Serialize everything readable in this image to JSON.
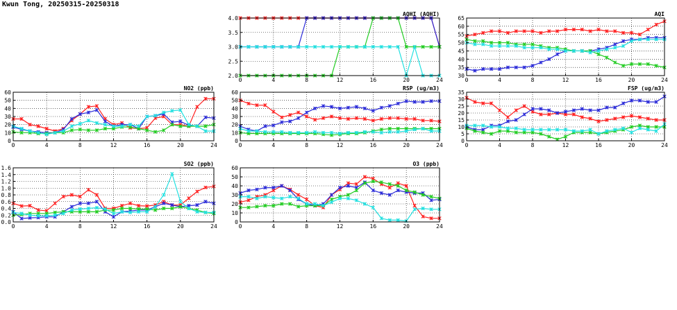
{
  "title": "Kwun Tong, 20250315-20250318",
  "colors": {
    "red": "#ff2020",
    "blue": "#2a2ad8",
    "green": "#22cc22",
    "cyan": "#22e0e0",
    "grid": "#000000"
  },
  "chart_data": [
    {
      "id": "aqhi",
      "type": "line",
      "title": "AQHI (AQHI)",
      "xlim": [
        0,
        24
      ],
      "xticks": [
        0,
        4,
        8,
        12,
        16,
        20,
        24
      ],
      "ylim": [
        2,
        4
      ],
      "yticks": [
        2.0,
        2.5,
        3.0,
        3.5,
        4.0
      ],
      "ytick_labels": [
        "2.0",
        "2.5",
        "3.0",
        "3.5",
        "4.0"
      ],
      "grid": true,
      "series": [
        {
          "color": "red",
          "values": [
            4,
            4,
            4,
            4,
            4,
            4,
            4,
            4,
            4,
            4,
            4,
            4,
            4,
            4,
            4,
            4,
            4,
            4,
            4,
            4,
            4,
            4,
            4,
            4,
            3
          ]
        },
        {
          "color": "blue",
          "values": [
            3,
            3,
            3,
            3,
            3,
            3,
            3,
            3,
            4,
            4,
            4,
            4,
            4,
            4,
            4,
            4,
            4,
            4,
            4,
            4,
            4,
            4,
            4,
            4,
            3
          ]
        },
        {
          "color": "green",
          "values": [
            2,
            2,
            2,
            2,
            2,
            2,
            2,
            2,
            2,
            2,
            2,
            2,
            3,
            3,
            3,
            3,
            4,
            4,
            4,
            4,
            3,
            3,
            3,
            3,
            3
          ]
        },
        {
          "color": "cyan",
          "values": [
            3,
            3,
            3,
            3,
            3,
            3,
            3,
            3,
            3,
            3,
            3,
            3,
            3,
            3,
            3,
            3,
            3,
            3,
            3,
            3,
            2,
            3,
            2,
            2,
            2
          ]
        }
      ]
    },
    {
      "id": "aqi",
      "type": "line",
      "title": "AQI",
      "xlim": [
        0,
        24
      ],
      "xticks": [
        0,
        4,
        8,
        12,
        16,
        20,
        24
      ],
      "ylim": [
        30,
        65
      ],
      "yticks": [
        30,
        35,
        40,
        45,
        50,
        55,
        60,
        65
      ],
      "ytick_labels": [
        "30",
        "35",
        "40",
        "45",
        "50",
        "55",
        "60",
        "65"
      ],
      "grid": true,
      "series": [
        {
          "color": "red",
          "values": [
            54,
            55,
            56,
            57,
            57,
            56,
            57,
            57,
            57,
            56,
            57,
            57,
            58,
            58,
            58,
            57,
            58,
            57,
            57,
            56,
            56,
            55,
            58,
            61,
            63
          ]
        },
        {
          "color": "blue",
          "values": [
            34,
            33,
            34,
            34,
            34,
            35,
            35,
            35,
            36,
            38,
            40,
            43,
            45,
            45,
            45,
            45,
            46,
            47,
            49,
            51,
            52,
            52,
            53,
            53,
            53
          ]
        },
        {
          "color": "green",
          "values": [
            52,
            51,
            51,
            50,
            50,
            50,
            49,
            49,
            49,
            48,
            47,
            47,
            46,
            45,
            45,
            45,
            43,
            41,
            38,
            36,
            37,
            37,
            37,
            36,
            35
          ]
        },
        {
          "color": "cyan",
          "values": [
            50,
            49,
            49,
            48,
            48,
            48,
            48,
            47,
            47,
            47,
            46,
            46,
            45,
            45,
            45,
            44,
            45,
            46,
            47,
            48,
            51,
            52,
            52,
            52,
            52
          ]
        }
      ]
    },
    {
      "id": "no2",
      "type": "line",
      "title": "NO2 (ppb)",
      "xlim": [
        0,
        24
      ],
      "xticks": [
        0,
        4,
        8,
        12,
        16,
        20,
        24
      ],
      "ylim": [
        0,
        60
      ],
      "yticks": [
        0,
        10,
        20,
        30,
        40,
        50,
        60
      ],
      "ytick_labels": [
        "0",
        "10",
        "20",
        "30",
        "40",
        "50",
        "60"
      ],
      "grid": true,
      "series": [
        {
          "color": "red",
          "values": [
            27,
            27,
            20,
            18,
            15,
            12,
            15,
            25,
            33,
            42,
            43,
            27,
            20,
            22,
            16,
            15,
            16,
            28,
            30,
            20,
            20,
            18,
            42,
            52,
            52
          ]
        },
        {
          "color": "blue",
          "values": [
            17,
            14,
            12,
            11,
            10,
            10,
            14,
            27,
            33,
            35,
            38,
            24,
            18,
            20,
            20,
            15,
            30,
            31,
            33,
            23,
            24,
            19,
            18,
            29,
            28
          ]
        },
        {
          "color": "green",
          "values": [
            11,
            10,
            10,
            9,
            9,
            10,
            10,
            13,
            14,
            13,
            13,
            15,
            15,
            17,
            17,
            15,
            13,
            11,
            13,
            20,
            18,
            18,
            18,
            18,
            20
          ]
        },
        {
          "color": "cyan",
          "values": [
            18,
            15,
            12,
            10,
            8,
            10,
            12,
            18,
            21,
            25,
            22,
            20,
            18,
            18,
            20,
            18,
            30,
            31,
            35,
            37,
            38,
            20,
            18,
            12,
            12
          ]
        }
      ]
    },
    {
      "id": "rsp",
      "type": "line",
      "title": "RSP (ug/m3)",
      "xlim": [
        0,
        24
      ],
      "xticks": [
        0,
        4,
        8,
        12,
        16,
        20,
        24
      ],
      "ylim": [
        0,
        60
      ],
      "yticks": [
        0,
        10,
        20,
        30,
        40,
        50,
        60
      ],
      "ytick_labels": [
        "0",
        "10",
        "20",
        "30",
        "40",
        "50",
        "60"
      ],
      "grid": true,
      "series": [
        {
          "color": "red",
          "values": [
            50,
            46,
            44,
            44,
            36,
            29,
            32,
            35,
            30,
            26,
            28,
            30,
            28,
            27,
            28,
            27,
            25,
            27,
            28,
            28,
            27,
            27,
            25,
            25,
            24
          ]
        },
        {
          "color": "blue",
          "values": [
            18,
            14,
            12,
            18,
            19,
            23,
            24,
            28,
            35,
            40,
            43,
            42,
            40,
            41,
            42,
            40,
            37,
            41,
            43,
            46,
            49,
            48,
            48,
            49,
            49
          ]
        },
        {
          "color": "green",
          "values": [
            10,
            9,
            9,
            9,
            9,
            9,
            9,
            9,
            9,
            9,
            8,
            7,
            8,
            9,
            9,
            10,
            12,
            14,
            15,
            15,
            15,
            15,
            15,
            15,
            15
          ]
        },
        {
          "color": "cyan",
          "values": [
            15,
            12,
            12,
            11,
            11,
            11,
            10,
            10,
            10,
            11,
            10,
            10,
            9,
            10,
            10,
            11,
            11,
            10,
            11,
            11,
            12,
            14,
            15,
            12,
            12
          ]
        }
      ]
    },
    {
      "id": "fsp",
      "type": "line",
      "title": "FSP (ug/m3)",
      "xlim": [
        0,
        24
      ],
      "xticks": [
        0,
        4,
        8,
        12,
        16,
        20,
        24
      ],
      "ylim": [
        0,
        35
      ],
      "yticks": [
        0,
        5,
        10,
        15,
        20,
        25,
        30,
        35
      ],
      "ytick_labels": [
        "0",
        "5",
        "10",
        "15",
        "20",
        "25",
        "30",
        "35"
      ],
      "grid": true,
      "series": [
        {
          "color": "red",
          "values": [
            31,
            28,
            27,
            27,
            22,
            17,
            22,
            25,
            21,
            19,
            19,
            20,
            19,
            19,
            17,
            16,
            14,
            15,
            16,
            17,
            18,
            17,
            16,
            15,
            15
          ]
        },
        {
          "color": "blue",
          "values": [
            10,
            8,
            8,
            11,
            11,
            14,
            15,
            19,
            23,
            23,
            22,
            20,
            21,
            22,
            23,
            22,
            22,
            24,
            24,
            27,
            29,
            29,
            28,
            28,
            32
          ]
        },
        {
          "color": "green",
          "values": [
            9,
            7,
            6,
            5,
            7,
            7,
            6,
            6,
            6,
            5,
            3,
            1,
            3,
            6,
            6,
            6,
            5,
            6,
            7,
            8,
            10,
            11,
            10,
            10,
            10
          ]
        },
        {
          "color": "cyan",
          "values": [
            11,
            11,
            11,
            10,
            10,
            9,
            9,
            8,
            8,
            8,
            8,
            8,
            8,
            7,
            7,
            8,
            5,
            7,
            8,
            9,
            6,
            9,
            8,
            7,
            12
          ]
        }
      ]
    },
    {
      "id": "so2",
      "type": "line",
      "title": "SO2 (ppb)",
      "xlim": [
        0,
        24
      ],
      "xticks": [
        0,
        4,
        8,
        12,
        16,
        20,
        24
      ],
      "ylim": [
        0,
        1.6
      ],
      "yticks": [
        0,
        0.2,
        0.4,
        0.6,
        0.8,
        1.0,
        1.2,
        1.4,
        1.6
      ],
      "ytick_labels": [
        "0.0",
        "0.2",
        "0.4",
        "0.6",
        "0.8",
        "1.0",
        "1.2",
        "1.4",
        "1.6"
      ],
      "grid": true,
      "series": [
        {
          "color": "red",
          "values": [
            0.55,
            0.47,
            0.48,
            0.35,
            0.33,
            0.55,
            0.75,
            0.8,
            0.75,
            0.95,
            0.8,
            0.4,
            0.4,
            0.48,
            0.55,
            0.48,
            0.47,
            0.5,
            0.6,
            0.5,
            0.5,
            0.7,
            0.9,
            1.02,
            1.05
          ]
        },
        {
          "color": "blue",
          "values": [
            0.3,
            0.1,
            0.12,
            0.13,
            0.15,
            0.15,
            0.3,
            0.45,
            0.55,
            0.55,
            0.6,
            0.3,
            0.15,
            0.3,
            0.32,
            0.35,
            0.35,
            0.45,
            0.55,
            0.5,
            0.45,
            0.48,
            0.5,
            0.6,
            0.55
          ]
        },
        {
          "color": "green",
          "values": [
            0.2,
            0.22,
            0.25,
            0.25,
            0.25,
            0.28,
            0.3,
            0.3,
            0.3,
            0.3,
            0.3,
            0.35,
            0.35,
            0.4,
            0.4,
            0.38,
            0.38,
            0.35,
            0.4,
            0.4,
            0.45,
            0.4,
            0.35,
            0.28,
            0.25
          ]
        },
        {
          "color": "cyan",
          "values": [
            0.28,
            0.25,
            0.2,
            0.18,
            0.18,
            0.2,
            0.25,
            0.35,
            0.38,
            0.4,
            0.42,
            0.38,
            0.25,
            0.3,
            0.28,
            0.3,
            0.3,
            0.45,
            0.8,
            1.42,
            0.6,
            0.4,
            0.3,
            0.28,
            0.28
          ]
        }
      ]
    },
    {
      "id": "o3",
      "type": "line",
      "title": "O3 (ppb)",
      "xlim": [
        0,
        24
      ],
      "xticks": [
        0,
        4,
        8,
        12,
        16,
        20,
        24
      ],
      "ylim": [
        0,
        60
      ],
      "yticks": [
        0,
        10,
        20,
        30,
        40,
        50,
        60
      ],
      "ytick_labels": [
        "0",
        "10",
        "20",
        "30",
        "40",
        "50",
        "60"
      ],
      "grid": true,
      "series": [
        {
          "color": "red",
          "values": [
            22,
            24,
            28,
            30,
            35,
            40,
            36,
            30,
            25,
            18,
            16,
            30,
            36,
            43,
            42,
            50,
            48,
            42,
            38,
            43,
            40,
            18,
            6,
            4,
            4
          ]
        },
        {
          "color": "blue",
          "values": [
            32,
            35,
            36,
            38,
            38,
            40,
            35,
            25,
            20,
            18,
            20,
            30,
            38,
            40,
            38,
            44,
            35,
            32,
            30,
            35,
            33,
            32,
            32,
            24,
            25
          ]
        },
        {
          "color": "green",
          "values": [
            16,
            16,
            17,
            18,
            18,
            20,
            20,
            17,
            18,
            18,
            18,
            25,
            28,
            30,
            35,
            43,
            45,
            44,
            42,
            40,
            35,
            33,
            30,
            28,
            26
          ]
        },
        {
          "color": "cyan",
          "values": [
            28,
            28,
            26,
            28,
            27,
            26,
            28,
            26,
            20,
            20,
            18,
            22,
            26,
            26,
            24,
            20,
            16,
            4,
            2,
            2,
            1,
            14,
            15,
            14,
            14
          ]
        }
      ]
    }
  ]
}
